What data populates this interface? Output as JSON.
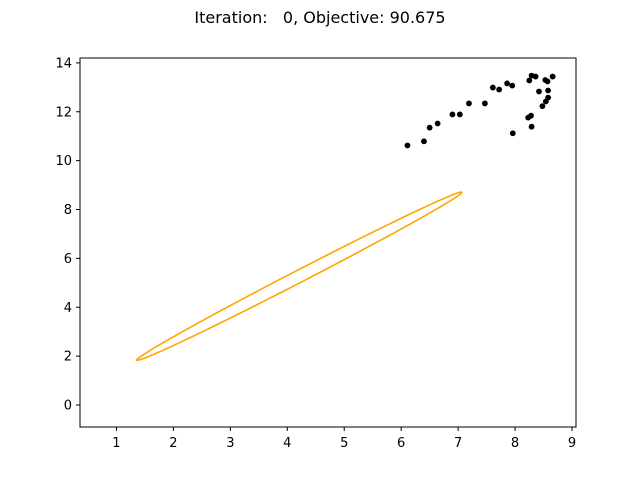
{
  "chart_data": {
    "type": "scatter",
    "title": "Iteration:   0, Objective: 90.675",
    "xlabel": "",
    "ylabel": "",
    "xlim": [
      0.36,
      9.07
    ],
    "ylim": [
      -0.9,
      14.2
    ],
    "xticks": [
      1,
      2,
      3,
      4,
      5,
      6,
      7,
      8,
      9
    ],
    "yticks": [
      0,
      2,
      4,
      6,
      8,
      10,
      12,
      14
    ],
    "grid": false,
    "legend": "none",
    "points_color": "#000000",
    "points": [
      {
        "x": 6.11,
        "y": 10.62
      },
      {
        "x": 6.4,
        "y": 10.79
      },
      {
        "x": 6.5,
        "y": 11.35
      },
      {
        "x": 6.64,
        "y": 11.52
      },
      {
        "x": 6.9,
        "y": 11.89
      },
      {
        "x": 7.03,
        "y": 11.89
      },
      {
        "x": 7.19,
        "y": 12.34
      },
      {
        "x": 7.47,
        "y": 12.34
      },
      {
        "x": 7.61,
        "y": 12.99
      },
      {
        "x": 7.72,
        "y": 12.91
      },
      {
        "x": 7.86,
        "y": 13.16
      },
      {
        "x": 7.95,
        "y": 13.07
      },
      {
        "x": 7.96,
        "y": 11.12
      },
      {
        "x": 8.23,
        "y": 11.76
      },
      {
        "x": 8.28,
        "y": 11.84
      },
      {
        "x": 8.29,
        "y": 11.39
      },
      {
        "x": 8.25,
        "y": 13.28
      },
      {
        "x": 8.29,
        "y": 13.48
      },
      {
        "x": 8.36,
        "y": 13.44
      },
      {
        "x": 8.42,
        "y": 12.83
      },
      {
        "x": 8.48,
        "y": 12.23
      },
      {
        "x": 8.54,
        "y": 12.42
      },
      {
        "x": 8.58,
        "y": 12.58
      },
      {
        "x": 8.58,
        "y": 12.87
      },
      {
        "x": 8.53,
        "y": 13.3
      },
      {
        "x": 8.57,
        "y": 13.24
      },
      {
        "x": 8.66,
        "y": 13.44
      }
    ],
    "ellipse": {
      "color": "#ffa500",
      "center_x": 4.21,
      "center_y": 5.27,
      "major_end_1": {
        "x": 1.36,
        "y": 1.83
      },
      "major_end_2": {
        "x": 7.06,
        "y": 8.71
      },
      "minor_semi_axis": 0.18
    }
  }
}
